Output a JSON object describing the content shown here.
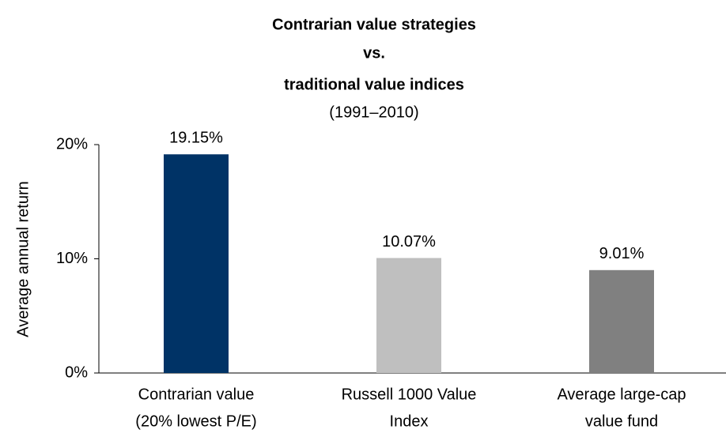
{
  "chart_data": {
    "type": "bar",
    "title": [
      "Contrarian value strategies",
      "vs.",
      "traditional value indices"
    ],
    "subtitle": "(1991–2010)",
    "y_label": "Average annual return",
    "categories": [
      [
        "Contrarian value",
        "(20% lowest P/E)"
      ],
      [
        "Russell 1000 Value",
        "Index"
      ],
      [
        "Average large-cap",
        "value fund"
      ]
    ],
    "values": [
      19.15,
      10.07,
      9.01
    ],
    "value_labels": [
      "19.15%",
      "10.07%",
      "9.01%"
    ],
    "colors": [
      "#003366",
      "#bfbfbf",
      "#808080"
    ],
    "ylim": [
      0,
      20
    ],
    "yticks": [
      {
        "value": 0,
        "label": "0%"
      },
      {
        "value": 10,
        "label": "10%"
      },
      {
        "value": 20,
        "label": "20%"
      }
    ],
    "grid": false
  }
}
